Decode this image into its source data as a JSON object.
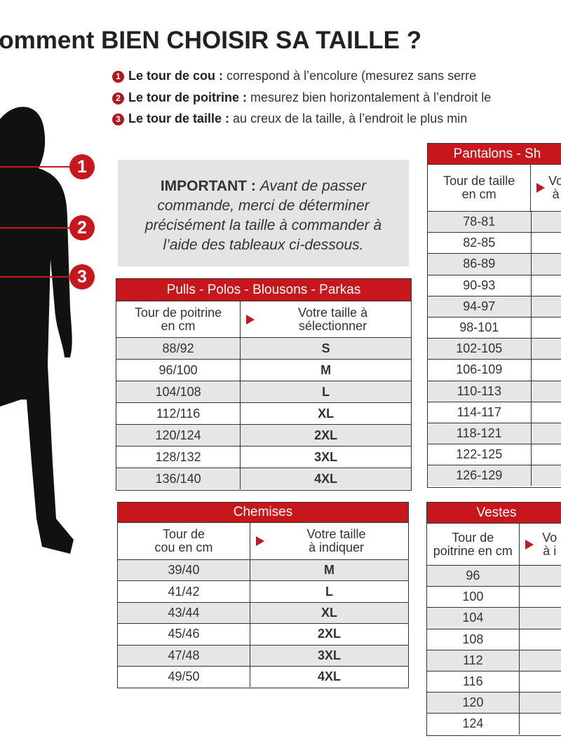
{
  "title": "Comment BIEN CHOISIR SA TAILLE ?",
  "instructions": [
    {
      "number": "1",
      "label": "Le tour de cou :",
      "text": "correspond à l’encolure (mesurez sans serre"
    },
    {
      "number": "2",
      "label": "Le tour de poitrine :",
      "text": "mesurez bien horizontalement à l’endroit le"
    },
    {
      "number": "3",
      "label": "Le tour de taille :",
      "text": "au creux de la taille, à l’endroit le plus min"
    }
  ],
  "figure": {
    "markers": [
      "1",
      "2",
      "3"
    ]
  },
  "important": {
    "label": "IMPORTANT :",
    "text": "Avant de passer commande, merci de déterminer précisément la taille à commander à l’aide des tableaux ci-dessous."
  },
  "tables": [
    {
      "title": "Pulls - Polos - Blousons - Parkas",
      "headers": [
        "Tour de poitrine\nen cm",
        "Votre taille à\nsélectionner"
      ],
      "rows": [
        [
          "88/92",
          "S"
        ],
        [
          "96/100",
          "M"
        ],
        [
          "104/108",
          "L"
        ],
        [
          "112/116",
          "XL"
        ],
        [
          "120/124",
          "2XL"
        ],
        [
          "128/132",
          "3XL"
        ],
        [
          "136/140",
          "4XL"
        ]
      ]
    },
    {
      "title": "Chemises",
      "headers": [
        "Tour de\ncou en cm",
        "Votre taille\nà indiquer"
      ],
      "rows": [
        [
          "39/40",
          "M"
        ],
        [
          "41/42",
          "L"
        ],
        [
          "43/44",
          "XL"
        ],
        [
          "45/46",
          "2XL"
        ],
        [
          "47/48",
          "3XL"
        ],
        [
          "49/50",
          "4XL"
        ]
      ]
    },
    {
      "title": "Pantalons - Sh",
      "headers": [
        "Tour de taille\nen cm",
        "Vo\nà"
      ],
      "rows": [
        [
          "78-81"
        ],
        [
          "82-85"
        ],
        [
          "86-89"
        ],
        [
          "90-93"
        ],
        [
          "94-97"
        ],
        [
          "98-101"
        ],
        [
          "102-105"
        ],
        [
          "106-109"
        ],
        [
          "110-113"
        ],
        [
          "114-117"
        ],
        [
          "118-121"
        ],
        [
          "122-125"
        ],
        [
          "126-129"
        ]
      ]
    },
    {
      "title": "Vestes",
      "headers": [
        "Tour de\npoitrine en cm",
        "Vo\nà i"
      ],
      "rows": [
        [
          "96"
        ],
        [
          "100"
        ],
        [
          "104"
        ],
        [
          "108"
        ],
        [
          "112"
        ],
        [
          "116"
        ],
        [
          "120"
        ],
        [
          "124"
        ]
      ]
    }
  ]
}
